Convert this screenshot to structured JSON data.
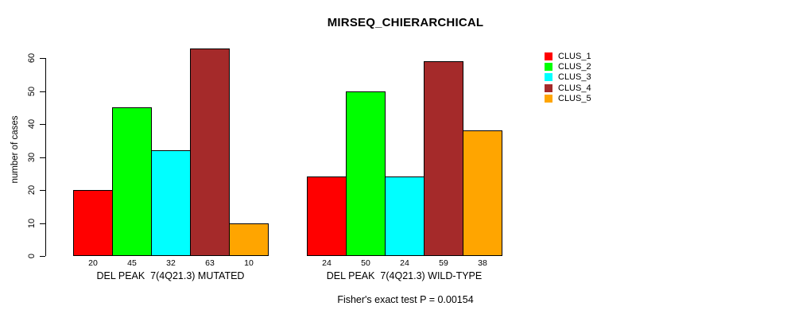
{
  "chart_data": {
    "type": "bar",
    "title": "MIRSEQ_CHIERARCHICAL",
    "ylabel": "number of cases",
    "xlabel": "",
    "ylim": [
      0,
      63
    ],
    "yticks": [
      0,
      10,
      20,
      30,
      40,
      50,
      60
    ],
    "grid": false,
    "legend_position": "right",
    "bar_value_labels": true,
    "categories": [
      "DEL PEAK  7(4Q21.3) MUTATED",
      "DEL PEAK  7(4Q21.3) WILD-TYPE"
    ],
    "series": [
      {
        "name": "CLUS_1",
        "color": "#FF0000",
        "values": [
          20,
          24
        ]
      },
      {
        "name": "CLUS_2",
        "color": "#00FF00",
        "values": [
          45,
          50
        ]
      },
      {
        "name": "CLUS_3",
        "color": "#00FFFF",
        "values": [
          32,
          24
        ]
      },
      {
        "name": "CLUS_4",
        "color": "#A52A2A",
        "values": [
          63,
          59
        ]
      },
      {
        "name": "CLUS_5",
        "color": "#FFA500",
        "values": [
          10,
          38
        ]
      }
    ],
    "annotation": "Fisher's exact test P = 0.00154"
  },
  "colors": {
    "axis": "#000000",
    "text": "#000000",
    "background": "#FFFFFF"
  }
}
